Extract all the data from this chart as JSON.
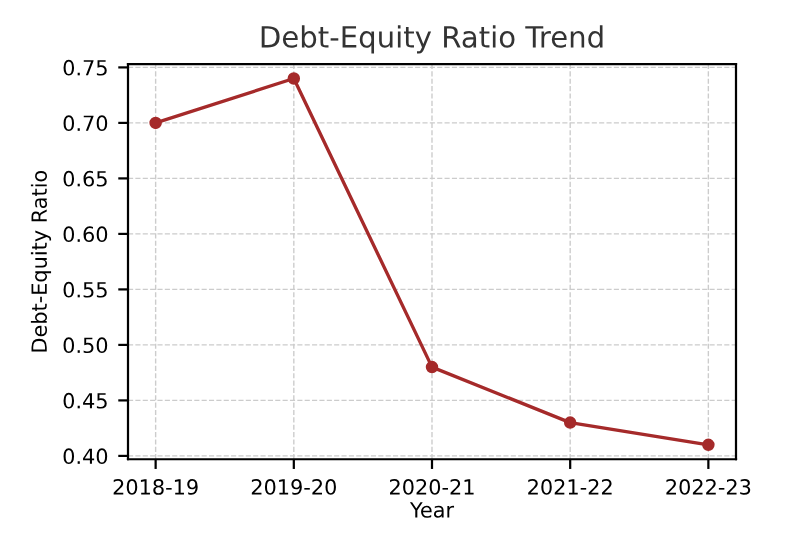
{
  "chart_data": {
    "type": "line",
    "title": "Debt-Equity Ratio Trend",
    "xlabel": "Year",
    "ylabel": "Debt-Equity Ratio",
    "categories": [
      "2018-19",
      "2019-20",
      "2020-21",
      "2021-22",
      "2022-23"
    ],
    "series": [
      {
        "color": "#a52a2a",
        "values": [
          0.7,
          0.74,
          0.48,
          0.43,
          0.41
        ]
      }
    ],
    "ylim": [
      0.397,
      0.753
    ],
    "yticks": [
      {
        "value": 0.4,
        "label": "0.40"
      },
      {
        "value": 0.45,
        "label": "0.45"
      },
      {
        "value": 0.5,
        "label": "0.50"
      },
      {
        "value": 0.55,
        "label": "0.55"
      },
      {
        "value": 0.6,
        "label": "0.60"
      },
      {
        "value": 0.65,
        "label": "0.65"
      },
      {
        "value": 0.7,
        "label": "0.70"
      },
      {
        "value": 0.75,
        "label": "0.75"
      }
    ],
    "grid": true,
    "marker": "circle",
    "line_style": "solid"
  }
}
